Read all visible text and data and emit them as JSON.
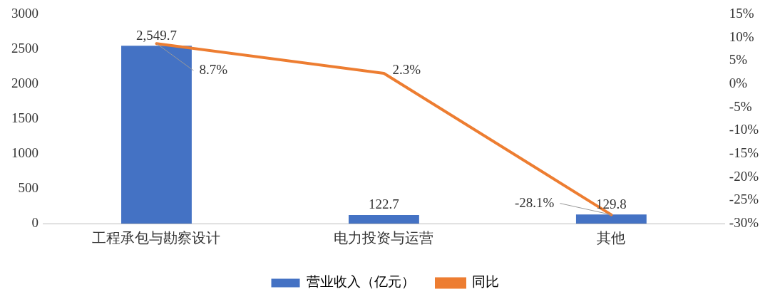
{
  "chart_data": {
    "type": "bar",
    "categories": [
      "工程承包与勘察设计",
      "电力投资与运营",
      "其他"
    ],
    "series": [
      {
        "name": "营业收入（亿元）",
        "color": "#4472c4",
        "values": [
          2549.7,
          122.7,
          129.8
        ],
        "value_labels": [
          "2,549.7",
          "122.7",
          "129.8"
        ]
      },
      {
        "name": "同比",
        "type": "line",
        "axis": "y2",
        "color": "#ed7d31",
        "values": [
          8.7,
          2.3,
          -28.1
        ],
        "value_labels": [
          "8.7%",
          "2.3%",
          "-28.1%"
        ],
        "marker": "none"
      }
    ],
    "ylim": [
      0,
      3000
    ],
    "yticks": [
      0,
      500,
      1000,
      1500,
      2000,
      2500,
      3000
    ],
    "y2lim": [
      -30,
      15
    ],
    "y2ticks": [
      {
        "value": -30,
        "label": "-30%"
      },
      {
        "value": -25,
        "label": "-25%"
      },
      {
        "value": -20,
        "label": "-20%"
      },
      {
        "value": -15,
        "label": "-15%"
      },
      {
        "value": -10,
        "label": "-10%"
      },
      {
        "value": -5,
        "label": "-5%"
      },
      {
        "value": 0,
        "label": "0%"
      },
      {
        "value": 5,
        "label": "5%"
      },
      {
        "value": 10,
        "label": "10%"
      },
      {
        "value": 15,
        "label": "15%"
      }
    ],
    "grid": false,
    "legend": "bottom"
  }
}
